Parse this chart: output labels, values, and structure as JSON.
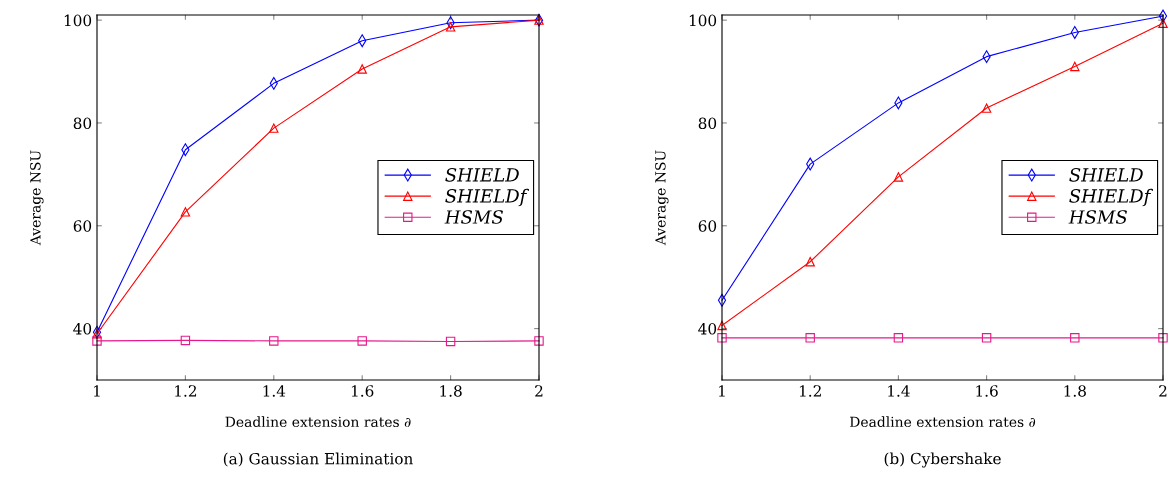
{
  "chart_data": [
    {
      "type": "line",
      "xlabel": "Deadline extension rates ∂",
      "ylabel": "Average NSU",
      "x": [
        1,
        1.2,
        1.4,
        1.6,
        1.8,
        2
      ],
      "xlim": [
        1,
        2
      ],
      "xticks": [
        1,
        1.2,
        1.4,
        1.6,
        1.8,
        2
      ],
      "ylim": [
        30,
        101
      ],
      "yticks": [
        40,
        60,
        80,
        100
      ],
      "legend": "right",
      "grid": false,
      "annotations": [
        "(a) Gaussian Elimination"
      ],
      "series": [
        {
          "name": "SHIELD",
          "color": "#0000ff",
          "marker": "diamond",
          "values": [
            39.3,
            74.8,
            87.7,
            96,
            99.5,
            100
          ]
        },
        {
          "name": "SHIELDf",
          "color": "#ff0000",
          "marker": "triangle",
          "values": [
            39,
            62.7,
            79,
            90.5,
            98.7,
            100
          ]
        },
        {
          "name": "HSMS",
          "color": "#e6198c",
          "marker": "square",
          "values": [
            37.6,
            37.7,
            37.6,
            37.6,
            37.5,
            37.6
          ]
        }
      ]
    },
    {
      "type": "line",
      "xlabel": "Deadline extension rates ∂",
      "ylabel": "Average NSU",
      "x": [
        1,
        1.2,
        1.4,
        1.6,
        1.8,
        2
      ],
      "xlim": [
        1,
        2
      ],
      "xticks": [
        1,
        1.2,
        1.4,
        1.6,
        1.8,
        2
      ],
      "ylim": [
        30,
        101
      ],
      "yticks": [
        40,
        60,
        80,
        100
      ],
      "legend": "right",
      "grid": false,
      "annotations": [
        "(b) Cybershake"
      ],
      "series": [
        {
          "name": "SHIELD",
          "color": "#0000ff",
          "marker": "diamond",
          "values": [
            45.5,
            72,
            83.9,
            92.9,
            97.6,
            100.8
          ]
        },
        {
          "name": "SHIELDf",
          "color": "#ff0000",
          "marker": "triangle",
          "values": [
            40.6,
            53,
            69.5,
            82.9,
            91,
            99.4
          ]
        },
        {
          "name": "HSMS",
          "color": "#e6198c",
          "marker": "square",
          "values": [
            38.2,
            38.2,
            38.2,
            38.2,
            38.2,
            38.2
          ]
        }
      ]
    }
  ]
}
